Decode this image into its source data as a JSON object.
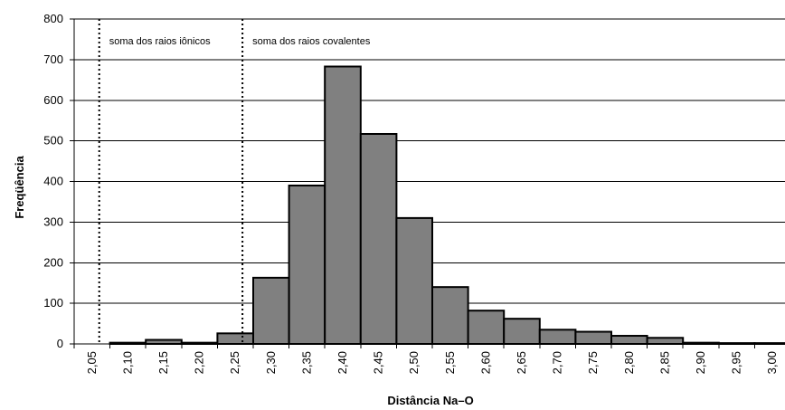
{
  "chart_data": {
    "type": "bar",
    "xlabel": "Distância Na–O",
    "ylabel": "Freqüência",
    "ylim": [
      0,
      800
    ],
    "yticks": [
      "0",
      "100",
      "200",
      "300",
      "400",
      "500",
      "600",
      "700",
      "800"
    ],
    "ytick_values": [
      0,
      100,
      200,
      300,
      400,
      500,
      600,
      700,
      800
    ],
    "categories": [
      "2,05",
      "2,10",
      "2,15",
      "2,20",
      "2,25",
      "2,30",
      "2,35",
      "2,40",
      "2,45",
      "2,50",
      "2,55",
      "2,60",
      "2,65",
      "2,70",
      "2,75",
      "2,80",
      "2,85",
      "2,90",
      "2,95",
      "3,00"
    ],
    "values": [
      0,
      3,
      10,
      3,
      26,
      163,
      390,
      683,
      517,
      310,
      140,
      82,
      62,
      35,
      30,
      20,
      15,
      3,
      2,
      2
    ],
    "bar_color": "#808080",
    "grid": true,
    "annotations": [
      {
        "text": "soma dos raios iônicos",
        "x": 2.085
      },
      {
        "text": "soma dos raios covalentes",
        "x": 2.285
      }
    ]
  }
}
